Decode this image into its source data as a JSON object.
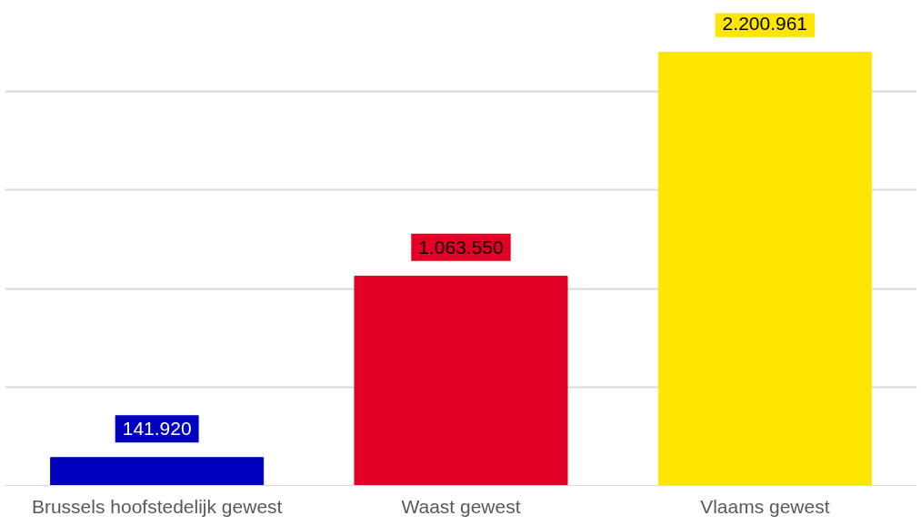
{
  "chart_data": {
    "type": "bar",
    "categories": [
      "Brussels hoofstedelijk gewest",
      "Waast gewest",
      "Vlaams gewest"
    ],
    "values": [
      141920,
      1063550,
      2200961
    ],
    "colors": [
      "#0000bf",
      "#e30026",
      "#ffe600"
    ],
    "value_labels": [
      "141.920",
      "1.063.550",
      "2.200.961"
    ],
    "grid": "y",
    "tick_labels": "x"
  }
}
